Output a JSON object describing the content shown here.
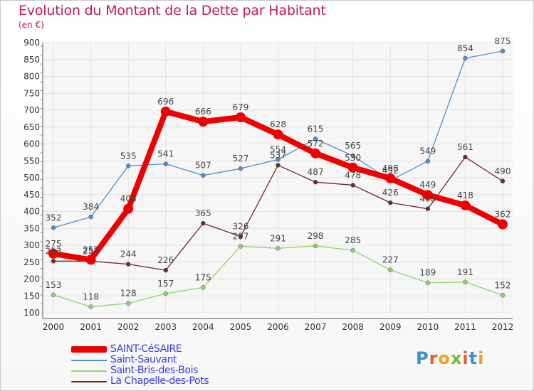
{
  "title": "Evolution du Montant de la Dette par Habitant",
  "subtitle": "(en €)",
  "logo_text": "Proxiti",
  "logo_colors": [
    "#3b8fd6",
    "#e85c2c",
    "#f0a020",
    "#6cbf3a",
    "#e85c2c",
    "#3b8fd6",
    "#f0a020"
  ],
  "chart_data": {
    "type": "line",
    "title": "Evolution du Montant de la Dette par Habitant",
    "ylabel": "(en €)",
    "xlabel": "",
    "ylim": [
      100,
      900
    ],
    "yticks": [
      100,
      150,
      200,
      250,
      300,
      350,
      400,
      450,
      500,
      550,
      600,
      650,
      700,
      750,
      800,
      850,
      900
    ],
    "categories": [
      "2000",
      "2001",
      "2002",
      "2003",
      "2004",
      "2005",
      "2006",
      "2007",
      "2008",
      "2009",
      "2010",
      "2011",
      "2012"
    ],
    "grid": true,
    "series": [
      {
        "name": "SAINT-CéSAIRE",
        "color": "#ee0000",
        "values": [
          275,
          257,
          408,
          696,
          666,
          679,
          628,
          572,
          530,
          498,
          449,
          418,
          362
        ],
        "labels": [
          "275",
          "257",
          "408",
          "696",
          "666",
          "679",
          "628",
          "572",
          "530",
          "498",
          "449",
          "418",
          "362"
        ]
      },
      {
        "name": "Saint-Sauvant",
        "color": "#4f8fcf",
        "values": [
          352,
          384,
          535,
          541,
          507,
          527,
          554,
          615,
          565,
          492,
          549,
          854,
          875
        ],
        "labels": [
          "352",
          "384",
          "535",
          "541",
          "507",
          "527",
          "554",
          "615",
          "565",
          "492",
          "549",
          "854",
          "875"
        ]
      },
      {
        "name": "Saint-Bris-des-Bois",
        "color": "#8fd46a",
        "values": [
          153,
          118,
          128,
          157,
          175,
          297,
          291,
          298,
          285,
          227,
          189,
          191,
          152
        ],
        "labels": [
          "153",
          "118",
          "128",
          "157",
          "175",
          "297",
          "291",
          "298",
          "285",
          "227",
          "189",
          "191",
          "152"
        ]
      },
      {
        "name": "La Chapelle-des-Pots",
        "color": "#6b2a2a",
        "values": [
          253,
          253,
          244,
          226,
          365,
          326,
          537,
          487,
          478,
          426,
          408,
          561,
          490
        ],
        "labels": [
          "253",
          "253",
          "244",
          "226",
          "365",
          "326",
          "537",
          "487",
          "478",
          "426",
          "408",
          "561",
          "490"
        ]
      }
    ]
  }
}
